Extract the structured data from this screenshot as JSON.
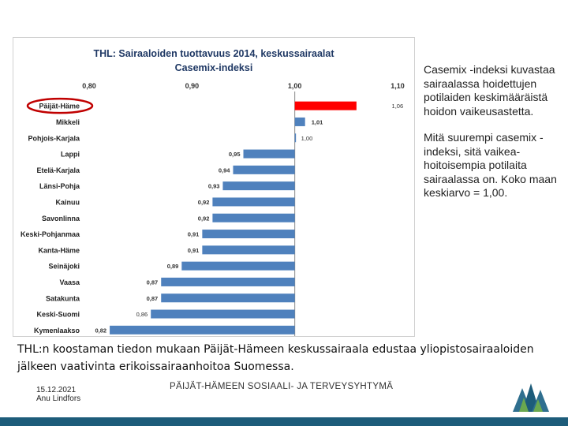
{
  "chart_data": {
    "type": "bar",
    "orientation": "horizontal",
    "title": "THL: Sairaaloiden tuottavuus 2014, keskussairaalat",
    "subtitle": "Casemix-indeksi",
    "categories": [
      "Päijät-Häme",
      "Mikkeli",
      "Pohjois-Karjala",
      "Lappi",
      "Etelä-Karjala",
      "Länsi-Pohja",
      "Kainuu",
      "Savonlinna",
      "Keski-Pohjanmaa",
      "Kanta-Häme",
      "Seinäjoki",
      "Vaasa",
      "Satakunta",
      "Keski-Suomi",
      "Kymenlaakso"
    ],
    "values": [
      1.06,
      1.01,
      1.0,
      0.95,
      0.94,
      0.93,
      0.92,
      0.92,
      0.91,
      0.91,
      0.89,
      0.87,
      0.87,
      0.86,
      0.82
    ],
    "value_labels": [
      "1,06",
      "1,01",
      "1,00",
      "0,95",
      "0,94",
      "0,93",
      "0,92",
      "0,92",
      "0,91",
      "0,91",
      "0,89",
      "0,87",
      "0,87",
      "0,86",
      "0,82"
    ],
    "bold_value_labels": [
      false,
      true,
      false,
      true,
      true,
      true,
      true,
      true,
      true,
      true,
      true,
      true,
      true,
      false,
      true
    ],
    "xlim": [
      0.8,
      1.1
    ],
    "xticks": [
      0.8,
      0.9,
      1.0,
      1.1
    ],
    "xtick_labels": [
      "0,80",
      "0,90",
      "1,00",
      "1,10"
    ],
    "xaxis_position": "top",
    "grid": false,
    "highlight": {
      "category": "Päijät-Häme",
      "color": "#ff0000",
      "circled": true,
      "circle_color": "#c00000"
    },
    "bar_color": "#4f81bd",
    "title_color": "#1f3864"
  },
  "side_text": [
    "Casemix -indeksi kuvastaa sairaalassa hoidettujen potilaiden keskimääräistä hoidon vaikeusastetta.",
    "Mitä suurempi casemix -indeksi, sitä vaikea-hoitoisempia potilaita sairaalassa on. Koko maan keskiarvo = 1,00."
  ],
  "caption": "THL:n koostaman tiedon mukaan Päijät-Hämeen keskussairaala edustaa yliopistosairaaloiden jälkeen vaativinta erikoissairaanhoitoa Suomessa.",
  "footer": {
    "date": "15.12.2021",
    "author": "Anu Lindfors",
    "organization": "PÄIJÄT-HÄMEEN SOSIAALI- JA TERVEYSYHTYMÄ",
    "bar_color": "#1d5c7a"
  },
  "logo": {
    "icon": "mountain-trees-logo",
    "colors": [
      "#2f6f8f",
      "#6aa84f",
      "#1d5c7a"
    ]
  }
}
